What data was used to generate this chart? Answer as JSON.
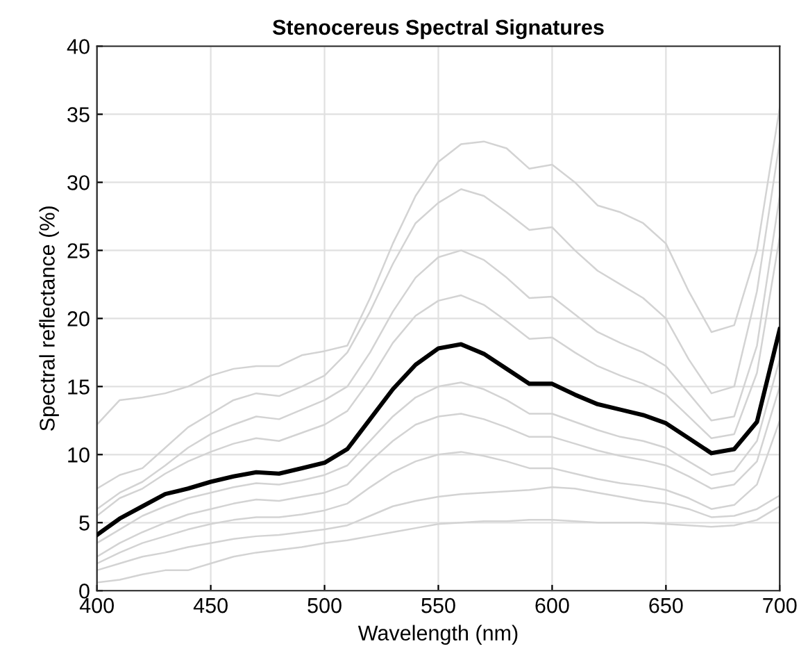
{
  "chart_data": {
    "type": "line",
    "title": "Stenocereus Spectral Signatures",
    "xlabel": "Wavelength (nm)",
    "ylabel": "Spectral reflectance (%)",
    "x": [
      400,
      410,
      420,
      430,
      440,
      450,
      460,
      470,
      480,
      490,
      500,
      510,
      520,
      530,
      540,
      550,
      560,
      570,
      580,
      590,
      600,
      610,
      620,
      630,
      640,
      650,
      660,
      670,
      680,
      690,
      700
    ],
    "series": [
      {
        "color": "#d3d3d3",
        "values": [
          12.2,
          14.0,
          14.2,
          14.5,
          15.0,
          15.8,
          16.3,
          16.5,
          16.5,
          17.3,
          17.6,
          18.0,
          21.5,
          25.5,
          29.0,
          31.5,
          32.8,
          33.0,
          32.5,
          31.0,
          31.3,
          30.0,
          28.3,
          27.8,
          27.0,
          25.5,
          22.0,
          19.0,
          19.5,
          25.0,
          35.5
        ]
      },
      {
        "color": "#d3d3d3",
        "values": [
          7.5,
          8.5,
          9.0,
          10.5,
          12.0,
          13.0,
          14.0,
          14.5,
          14.3,
          15.0,
          15.8,
          17.5,
          20.5,
          24.0,
          27.0,
          28.5,
          29.5,
          29.0,
          27.8,
          26.5,
          26.7,
          25.0,
          23.5,
          22.5,
          21.5,
          20.0,
          17.0,
          14.5,
          15.0,
          22.0,
          33.0
        ]
      },
      {
        "color": "#d3d3d3",
        "values": [
          6.0,
          7.2,
          8.0,
          9.2,
          10.5,
          11.5,
          12.2,
          12.8,
          12.6,
          13.3,
          14.0,
          15.0,
          17.5,
          20.5,
          23.0,
          24.5,
          25.0,
          24.3,
          23.0,
          21.5,
          21.6,
          20.3,
          19.0,
          18.2,
          17.5,
          16.5,
          14.5,
          12.5,
          12.8,
          18.0,
          29.0
        ]
      },
      {
        "color": "#d3d3d3",
        "values": [
          5.5,
          6.8,
          7.5,
          8.6,
          9.5,
          10.2,
          10.8,
          11.2,
          11.0,
          11.6,
          12.2,
          13.2,
          15.5,
          18.2,
          20.2,
          21.3,
          21.7,
          21.0,
          19.8,
          18.5,
          18.6,
          17.5,
          16.5,
          15.8,
          15.2,
          14.4,
          12.8,
          11.2,
          11.5,
          16.0,
          26.0
        ]
      },
      {
        "color": "#d3d3d3",
        "values": [
          3.5,
          4.5,
          5.5,
          6.2,
          6.8,
          7.2,
          7.6,
          7.9,
          7.8,
          8.1,
          8.5,
          9.2,
          11.0,
          12.8,
          14.2,
          15.0,
          15.3,
          14.8,
          14.0,
          13.0,
          13.0,
          12.4,
          11.8,
          11.3,
          11.0,
          10.5,
          9.5,
          8.5,
          8.8,
          11.0,
          17.0
        ]
      },
      {
        "color": "#d3d3d3",
        "values": [
          2.5,
          3.5,
          4.3,
          5.0,
          5.6,
          6.0,
          6.4,
          6.7,
          6.6,
          6.9,
          7.2,
          7.8,
          9.5,
          11.0,
          12.2,
          12.8,
          13.0,
          12.6,
          12.0,
          11.3,
          11.3,
          10.8,
          10.3,
          9.9,
          9.6,
          9.2,
          8.4,
          7.5,
          7.8,
          9.5,
          15.0
        ]
      },
      {
        "color": "#d3d3d3",
        "values": [
          2.0,
          2.8,
          3.5,
          4.0,
          4.5,
          4.9,
          5.2,
          5.4,
          5.4,
          5.6,
          5.9,
          6.4,
          7.6,
          8.7,
          9.5,
          10.0,
          10.2,
          9.9,
          9.5,
          9.0,
          9.0,
          8.6,
          8.2,
          7.9,
          7.7,
          7.4,
          6.8,
          6.0,
          6.3,
          7.8,
          12.5
        ]
      },
      {
        "color": "#d3d3d3",
        "values": [
          1.5,
          2.0,
          2.5,
          2.8,
          3.2,
          3.5,
          3.8,
          4.0,
          4.1,
          4.3,
          4.5,
          4.8,
          5.5,
          6.2,
          6.6,
          6.9,
          7.1,
          7.2,
          7.3,
          7.4,
          7.6,
          7.5,
          7.2,
          6.9,
          6.6,
          6.4,
          6.0,
          5.4,
          5.5,
          6.0,
          7.0
        ]
      },
      {
        "color": "#d3d3d3",
        "values": [
          0.6,
          0.8,
          1.2,
          1.5,
          1.5,
          2.0,
          2.5,
          2.8,
          3.0,
          3.2,
          3.5,
          3.7,
          4.0,
          4.3,
          4.6,
          4.9,
          5.0,
          5.1,
          5.1,
          5.2,
          5.2,
          5.1,
          5.0,
          5.0,
          5.0,
          4.9,
          4.8,
          4.7,
          4.8,
          5.2,
          6.2
        ]
      },
      {
        "color": "#000000",
        "values": [
          4.1,
          5.3,
          6.2,
          7.1,
          7.5,
          8.0,
          8.4,
          8.7,
          8.6,
          9.0,
          9.4,
          10.4,
          12.6,
          14.8,
          16.6,
          17.8,
          18.1,
          17.4,
          16.3,
          15.2,
          15.2,
          14.4,
          13.7,
          13.3,
          12.9,
          12.3,
          11.2,
          10.1,
          10.4,
          12.4,
          19.2
        ]
      }
    ],
    "xlim": [
      400,
      700
    ],
    "ylim": [
      0,
      40
    ],
    "xticks": [
      400,
      450,
      500,
      550,
      600,
      650,
      700
    ],
    "yticks": [
      0,
      5,
      10,
      15,
      20,
      25,
      30,
      35,
      40
    ],
    "grid": true
  }
}
